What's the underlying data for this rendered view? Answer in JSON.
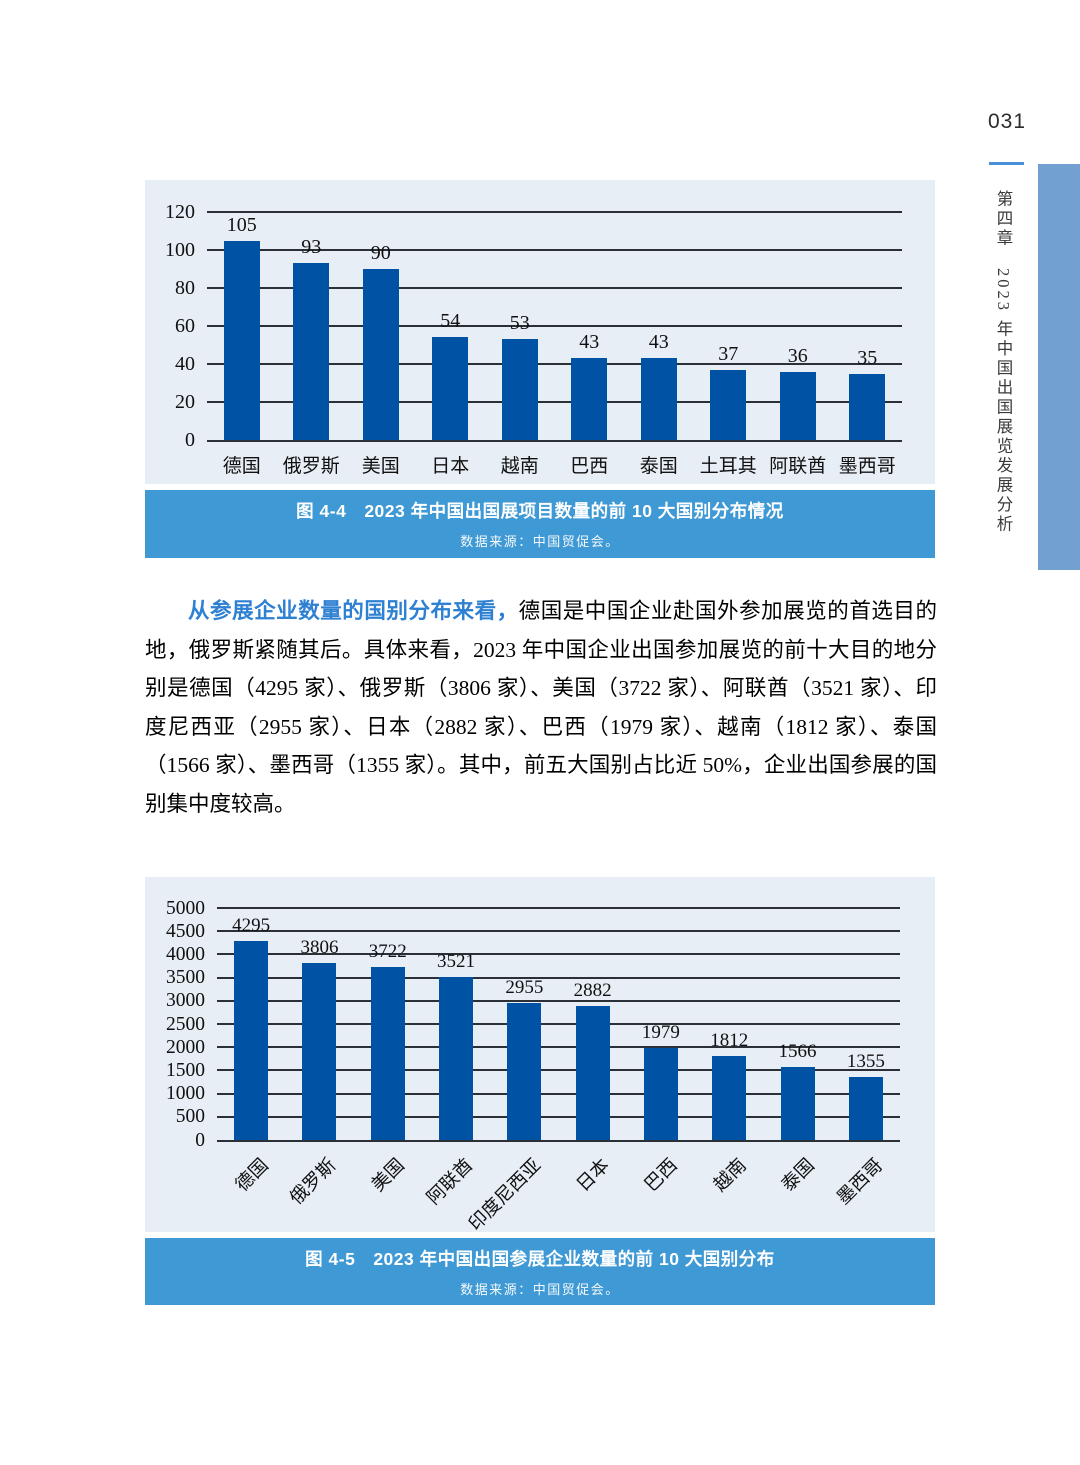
{
  "page": {
    "number": "031",
    "chapter_vertical": "第四章　2023 年中国出国展览发展分析"
  },
  "colors": {
    "bar_blue": "#0053a4",
    "panel_background": "#e7eef6",
    "caption_background": "#3f99d5",
    "sidebar_accent": "#72a1d1",
    "lead_text_blue": "#2e80d2"
  },
  "figure44": {
    "caption_title": "图 4-4　2023 年中国出国展项目数量的前 10 大国别分布情况",
    "caption_source": "数据来源：中国贸促会。"
  },
  "figure45": {
    "caption_title": "图 4-5　2023 年中国出国参展企业数量的前 10 大国别分布",
    "caption_source": "数据来源：中国贸促会。"
  },
  "paragraph": {
    "lead": "从参展企业数量的国别分布来看，",
    "body": "德国是中国企业赴国外参加展览的首选目的地，俄罗斯紧随其后。具体来看，2023 年中国企业出国参加展览的前十大目的地分别是德国（4295 家）、俄罗斯（3806 家）、美国（3722 家）、阿联酋（3521 家）、印度尼西亚（2955 家）、日本（2882 家）、巴西（1979 家）、越南（1812 家）、泰国（1566 家）、墨西哥（1355 家）。其中，前五大国别占比近 50%，企业出国参展的国别集中度较高。"
  },
  "chart_data": [
    {
      "type": "bar",
      "title": "2023 年中国出国展项目数量的前 10 大国别分布情况",
      "categories": [
        "德国",
        "俄罗斯",
        "美国",
        "日本",
        "越南",
        "巴西",
        "泰国",
        "土耳其",
        "阿联酋",
        "墨西哥"
      ],
      "values": [
        105,
        93,
        90,
        54,
        53,
        43,
        43,
        37,
        36,
        35
      ],
      "xlabel": "",
      "ylabel": "",
      "ylim": [
        0,
        120
      ],
      "ytick": 20,
      "grid": true,
      "legend": false,
      "rotate_xlabels": false
    },
    {
      "type": "bar",
      "title": "2023 年中国出国参展企业数量的前 10 大国别分布",
      "categories": [
        "德国",
        "俄罗斯",
        "美国",
        "阿联酋",
        "印度尼西亚",
        "日本",
        "巴西",
        "越南",
        "泰国",
        "墨西哥"
      ],
      "values": [
        4295,
        3806,
        3722,
        3521,
        2955,
        2882,
        1979,
        1812,
        1566,
        1355
      ],
      "xlabel": "",
      "ylabel": "",
      "ylim": [
        0,
        5000
      ],
      "ytick": 500,
      "grid": true,
      "legend": false,
      "rotate_xlabels": true
    }
  ]
}
